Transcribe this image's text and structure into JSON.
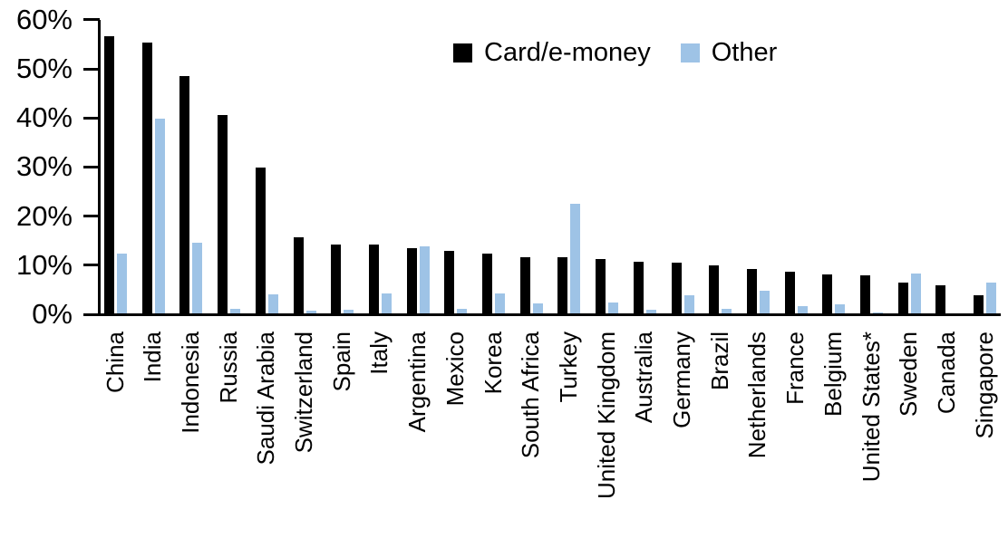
{
  "chart_data": {
    "type": "bar",
    "title": "",
    "xlabel": "",
    "ylabel": "",
    "ylim": [
      0,
      60
    ],
    "ytick_step": 10,
    "ytick_labels": [
      "0%",
      "10%",
      "20%",
      "30%",
      "40%",
      "50%",
      "60%"
    ],
    "grid": false,
    "legend_position": "top-center",
    "categories": [
      "China",
      "India",
      "Indonesia",
      "Russia",
      "Saudi Arabia",
      "Switzerland",
      "Spain",
      "Italy",
      "Argentina",
      "Mexico",
      "Korea",
      "South Africa",
      "Turkey",
      "United Kingdom",
      "Australia",
      "Germany",
      "Brazil",
      "Netherlands",
      "France",
      "Belgium",
      "United States*",
      "Sweden",
      "Canada",
      "Singapore"
    ],
    "series": [
      {
        "name": "Card/e-money",
        "color": "#000000",
        "values": [
          56.4,
          55.2,
          48.4,
          40.5,
          29.8,
          15.5,
          14.1,
          14.0,
          13.2,
          12.8,
          12.1,
          11.5,
          11.4,
          11.0,
          10.6,
          10.4,
          9.7,
          9.0,
          8.5,
          8.0,
          7.8,
          6.3,
          5.7,
          3.6
        ]
      },
      {
        "name": "Other",
        "color": "#9EC3E6",
        "values": [
          12.2,
          39.7,
          14.4,
          0.9,
          3.8,
          0.6,
          0.8,
          4.1,
          13.7,
          1.0,
          4.1,
          2.1,
          22.4,
          2.2,
          0.8,
          3.7,
          0.9,
          4.6,
          1.4,
          1.9,
          0.2,
          8.1,
          0,
          6.3
        ]
      }
    ]
  }
}
